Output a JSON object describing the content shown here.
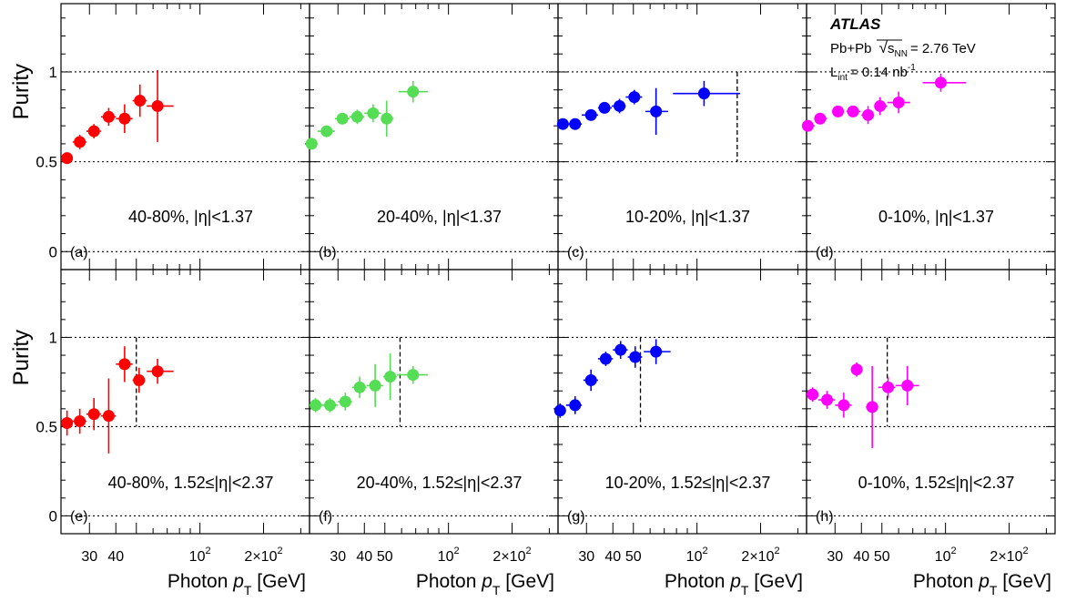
{
  "chart_data": {
    "type": "scatter",
    "experiment": "ATLAS",
    "collision": "Pb+Pb",
    "energy_sym": "s",
    "energy_sub": "NN",
    "energy_value": "= 2.76 TeV",
    "lumi_sym": "L",
    "lumi_sub": "int",
    "lumi_value": "= 0.14 nb",
    "lumi_exp": "-1",
    "ylabel": "Purity",
    "xlabel_prefix": "Photon ",
    "xlabel_var": "p",
    "xlabel_sub": "T",
    "xlabel_unit": " [GeV]",
    "xscale": "log",
    "ylim": [
      -0.1,
      1.38
    ],
    "yticks": [
      {
        "v": 0,
        "t": "0"
      },
      {
        "v": 0.5,
        "t": "0.5"
      },
      {
        "v": 1,
        "t": "1"
      }
    ],
    "xticks_major": [
      {
        "v": 30,
        "t": "30"
      },
      {
        "v": 40,
        "t": "40"
      },
      {
        "v": 50,
        "t": "50"
      },
      {
        "v": 100,
        "base": "10",
        "exp": "2"
      },
      {
        "v": 200,
        "base": "2×10",
        "exp": "2"
      }
    ],
    "xticks_minor": [
      60,
      70,
      80,
      90,
      300
    ],
    "grid": "dotted lines at purity 0, 0.5, 1",
    "panels": [
      {
        "tag": "(a)",
        "label": "40-80%, |η|<1.37",
        "xlim": [
          22,
          330
        ],
        "color": "#ff0000",
        "xticks": [
          30,
          40,
          100,
          200
        ],
        "dashed_x": null,
        "points": [
          {
            "x": 23.5,
            "xlo": 22,
            "xhi": 25,
            "y": 0.52,
            "yerr": 0.03
          },
          {
            "x": 27,
            "xlo": 25,
            "xhi": 29,
            "y": 0.61,
            "yerr": 0.04
          },
          {
            "x": 31.5,
            "xlo": 29,
            "xhi": 34,
            "y": 0.67,
            "yerr": 0.04
          },
          {
            "x": 37,
            "xlo": 34,
            "xhi": 40,
            "y": 0.75,
            "yerr": 0.05
          },
          {
            "x": 44,
            "xlo": 40,
            "xhi": 48,
            "y": 0.74,
            "yerr": 0.08
          },
          {
            "x": 52,
            "xlo": 48,
            "xhi": 56,
            "y": 0.84,
            "yerr": 0.09
          },
          {
            "x": 63,
            "xlo": 56,
            "xhi": 75,
            "y": 0.81,
            "yerr": 0.2
          }
        ]
      },
      {
        "tag": "(b)",
        "label": "20-40%, |η|<1.37",
        "xlim": [
          22,
          330
        ],
        "color": "#55dd55",
        "xticks": [
          30,
          40,
          50,
          100,
          200
        ],
        "dashed_x": null,
        "points": [
          {
            "x": 22.5,
            "xlo": 22,
            "xhi": 24,
            "y": 0.6,
            "yerr": 0.02
          },
          {
            "x": 26.5,
            "xlo": 24,
            "xhi": 29,
            "y": 0.67,
            "yerr": 0.02
          },
          {
            "x": 31.5,
            "xlo": 29,
            "xhi": 34,
            "y": 0.74,
            "yerr": 0.03
          },
          {
            "x": 37,
            "xlo": 34,
            "xhi": 40,
            "y": 0.75,
            "yerr": 0.04
          },
          {
            "x": 44,
            "xlo": 40,
            "xhi": 48,
            "y": 0.77,
            "yerr": 0.05
          },
          {
            "x": 51,
            "xlo": 48,
            "xhi": 55,
            "y": 0.74,
            "yerr": 0.1
          },
          {
            "x": 68,
            "xlo": 58,
            "xhi": 80,
            "y": 0.89,
            "yerr": 0.06
          }
        ]
      },
      {
        "tag": "(c)",
        "label": "10-20%, |η|<1.37",
        "xlim": [
          22,
          330
        ],
        "color": "#0000ff",
        "xticks": [
          30,
          40,
          50,
          100,
          200
        ],
        "dashed_x": 155,
        "points": [
          {
            "x": 23.2,
            "xlo": 22,
            "xhi": 24.5,
            "y": 0.71,
            "yerr": 0.02
          },
          {
            "x": 26.5,
            "xlo": 24.5,
            "xhi": 28.5,
            "y": 0.71,
            "yerr": 0.02
          },
          {
            "x": 31.5,
            "xlo": 28.5,
            "xhi": 34,
            "y": 0.76,
            "yerr": 0.02
          },
          {
            "x": 36.5,
            "xlo": 34,
            "xhi": 39.5,
            "y": 0.8,
            "yerr": 0.03
          },
          {
            "x": 43,
            "xlo": 39.5,
            "xhi": 46,
            "y": 0.81,
            "yerr": 0.04
          },
          {
            "x": 50.5,
            "xlo": 46,
            "xhi": 55,
            "y": 0.86,
            "yerr": 0.04
          },
          {
            "x": 64,
            "xlo": 57,
            "xhi": 73,
            "y": 0.78,
            "yerr": 0.13
          },
          {
            "x": 108,
            "xlo": 77,
            "xhi": 160,
            "y": 0.88,
            "yerr": 0.07
          }
        ]
      },
      {
        "tag": "(d)",
        "label": "0-10%, |η|<1.37",
        "xlim": [
          22,
          330
        ],
        "color": "#ff00ff",
        "xticks": [
          30,
          40,
          50,
          100,
          200
        ],
        "dashed_x": null,
        "points": [
          {
            "x": 22.3,
            "xlo": 22,
            "xhi": 24,
            "y": 0.7,
            "yerr": 0.02
          },
          {
            "x": 25.5,
            "xlo": 24,
            "xhi": 27.5,
            "y": 0.74,
            "yerr": 0.02
          },
          {
            "x": 31,
            "xlo": 29,
            "xhi": 33,
            "y": 0.78,
            "yerr": 0.02
          },
          {
            "x": 36.5,
            "xlo": 34,
            "xhi": 39.5,
            "y": 0.78,
            "yerr": 0.03
          },
          {
            "x": 43,
            "xlo": 40,
            "xhi": 46,
            "y": 0.76,
            "yerr": 0.05
          },
          {
            "x": 49,
            "xlo": 46,
            "xhi": 53,
            "y": 0.81,
            "yerr": 0.05
          },
          {
            "x": 60,
            "xlo": 53,
            "xhi": 68,
            "y": 0.83,
            "yerr": 0.06
          },
          {
            "x": 95,
            "xlo": 78,
            "xhi": 125,
            "y": 0.94,
            "yerr": 0.05
          }
        ]
      },
      {
        "tag": "(e)",
        "label": "40-80%, 1.52≤|η|<2.37",
        "xlim": [
          22,
          330
        ],
        "color": "#ff0000",
        "xticks": [
          30,
          40,
          100,
          200
        ],
        "dashed_x": 50,
        "points": [
          {
            "x": 23.5,
            "xlo": 22,
            "xhi": 25,
            "y": 0.52,
            "yerr": 0.07
          },
          {
            "x": 27,
            "xlo": 25,
            "xhi": 29,
            "y": 0.53,
            "yerr": 0.07
          },
          {
            "x": 31.5,
            "xlo": 29,
            "xhi": 34,
            "y": 0.57,
            "yerr": 0.09
          },
          {
            "x": 37,
            "xlo": 34,
            "xhi": 40,
            "y": 0.56,
            "yerr": 0.21
          },
          {
            "x": 44,
            "xlo": 40,
            "xhi": 48,
            "y": 0.85,
            "yerr": 0.1
          },
          {
            "x": 51.5,
            "xlo": 48,
            "xhi": 55,
            "y": 0.76,
            "yerr": 0.07
          },
          {
            "x": 63,
            "xlo": 56,
            "xhi": 75,
            "y": 0.81,
            "yerr": 0.07
          }
        ]
      },
      {
        "tag": "(f)",
        "label": "20-40%, 1.52≤|η|<2.37",
        "xlim": [
          22,
          330
        ],
        "color": "#55dd55",
        "xticks": [
          30,
          40,
          50,
          100,
          200
        ],
        "dashed_x": 59,
        "points": [
          {
            "x": 23.5,
            "xlo": 22,
            "xhi": 25,
            "y": 0.62,
            "yerr": 0.04
          },
          {
            "x": 27.5,
            "xlo": 25,
            "xhi": 30,
            "y": 0.62,
            "yerr": 0.04
          },
          {
            "x": 32.5,
            "xlo": 30,
            "xhi": 35,
            "y": 0.64,
            "yerr": 0.05
          },
          {
            "x": 38,
            "xlo": 35,
            "xhi": 41,
            "y": 0.72,
            "yerr": 0.06
          },
          {
            "x": 45,
            "xlo": 41,
            "xhi": 49,
            "y": 0.73,
            "yerr": 0.12
          },
          {
            "x": 53,
            "xlo": 49,
            "xhi": 57,
            "y": 0.78,
            "yerr": 0.13
          },
          {
            "x": 68,
            "xlo": 57,
            "xhi": 80,
            "y": 0.79,
            "yerr": 0.05
          }
        ]
      },
      {
        "tag": "(g)",
        "label": "10-20%, 1.52≤|η|<2.37",
        "xlim": [
          22,
          330
        ],
        "color": "#0000ff",
        "xticks": [
          30,
          40,
          50,
          100,
          200
        ],
        "dashed_x": 54,
        "points": [
          {
            "x": 22.5,
            "xlo": 22,
            "xhi": 24,
            "y": 0.59,
            "yerr": 0.04
          },
          {
            "x": 26.5,
            "xlo": 24,
            "xhi": 28.5,
            "y": 0.62,
            "yerr": 0.05
          },
          {
            "x": 31.5,
            "xlo": 29,
            "xhi": 34,
            "y": 0.76,
            "yerr": 0.06
          },
          {
            "x": 37,
            "xlo": 34,
            "xhi": 40,
            "y": 0.88,
            "yerr": 0.04
          },
          {
            "x": 43.5,
            "xlo": 40,
            "xhi": 47,
            "y": 0.93,
            "yerr": 0.05
          },
          {
            "x": 51,
            "xlo": 47,
            "xhi": 55,
            "y": 0.89,
            "yerr": 0.06
          },
          {
            "x": 64,
            "xlo": 56,
            "xhi": 75,
            "y": 0.92,
            "yerr": 0.07
          }
        ]
      },
      {
        "tag": "(h)",
        "label": "0-10%, 1.52≤|η|<2.37",
        "xlim": [
          22,
          330
        ],
        "color": "#ff00ff",
        "xticks": [
          30,
          40,
          50,
          100,
          200
        ],
        "dashed_x": 53,
        "points": [
          {
            "x": 23.5,
            "xlo": 22,
            "xhi": 25,
            "y": 0.68,
            "yerr": 0.04
          },
          {
            "x": 27.5,
            "xlo": 25,
            "xhi": 30,
            "y": 0.65,
            "yerr": 0.05
          },
          {
            "x": 33,
            "xlo": 30,
            "xhi": 36,
            "y": 0.62,
            "yerr": 0.07
          },
          {
            "x": 38,
            "xlo": 36,
            "xhi": 40,
            "y": 0.82,
            "yerr": 0.04
          },
          {
            "x": 45,
            "xlo": 42,
            "xhi": 48,
            "y": 0.61,
            "yerr": 0.23
          },
          {
            "x": 53.5,
            "xlo": 48,
            "xhi": 58,
            "y": 0.72,
            "yerr": 0.06
          },
          {
            "x": 66,
            "xlo": 58,
            "xhi": 75,
            "y": 0.73,
            "yerr": 0.11
          }
        ]
      }
    ]
  }
}
